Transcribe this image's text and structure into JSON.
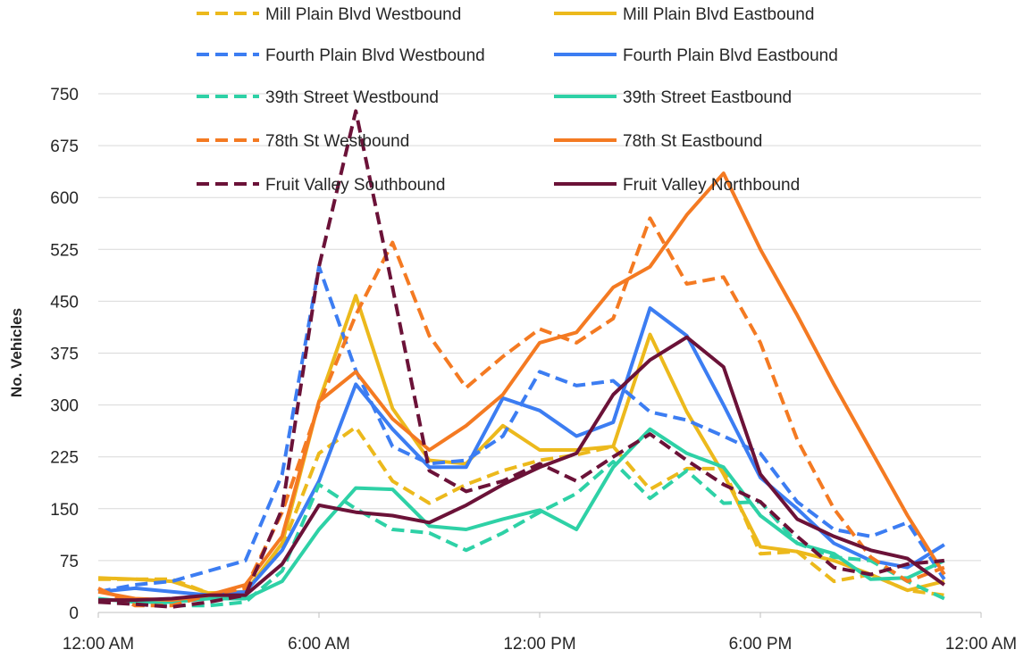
{
  "chart_data": {
    "type": "line",
    "title": "",
    "xlabel": "",
    "ylabel": "No. Vehicles",
    "ylim": [
      0,
      750
    ],
    "yticks": [
      0,
      75,
      150,
      225,
      300,
      375,
      450,
      525,
      600,
      675,
      750
    ],
    "xlim": [
      0,
      24
    ],
    "xticks": [
      {
        "value": 0,
        "label": "12:00 AM"
      },
      {
        "value": 6,
        "label": "6:00 AM"
      },
      {
        "value": 12,
        "label": "12:00 PM"
      },
      {
        "value": 18,
        "label": "6:00 PM"
      },
      {
        "value": 24,
        "label": "12:00 AM"
      }
    ],
    "grid": true,
    "legend_position": "top-right",
    "x": [
      0,
      1,
      2,
      3,
      4,
      5,
      6,
      7,
      8,
      9,
      10,
      11,
      12,
      13,
      14,
      15,
      16,
      17,
      18,
      19,
      20,
      21,
      22,
      23
    ],
    "series": [
      {
        "name": "Mill Plain Blvd Westbound",
        "color": "#ECB91C",
        "dash": true,
        "values": [
          48,
          48,
          48,
          28,
          30,
          95,
          230,
          268,
          190,
          158,
          185,
          205,
          220,
          228,
          240,
          178,
          208,
          208,
          85,
          88,
          45,
          55,
          32,
          25
        ]
      },
      {
        "name": "Mill Plain Blvd Eastbound",
        "color": "#ECB91C",
        "dash": false,
        "values": [
          50,
          48,
          45,
          28,
          30,
          100,
          305,
          458,
          295,
          220,
          215,
          270,
          235,
          235,
          240,
          402,
          290,
          200,
          95,
          88,
          75,
          55,
          32,
          45
        ]
      },
      {
        "name": "Fourth Plain Blvd Westbound",
        "color": "#3C7DF2",
        "dash": true,
        "values": [
          30,
          40,
          45,
          60,
          75,
          200,
          500,
          350,
          240,
          215,
          220,
          255,
          348,
          328,
          335,
          290,
          278,
          255,
          230,
          160,
          120,
          110,
          130,
          48
        ]
      },
      {
        "name": "Fourth Plain Blvd Eastbound",
        "color": "#3C7DF2",
        "dash": false,
        "values": [
          30,
          35,
          30,
          25,
          30,
          90,
          190,
          330,
          265,
          210,
          210,
          310,
          292,
          255,
          275,
          440,
          400,
          300,
          195,
          150,
          100,
          75,
          65,
          98
        ]
      },
      {
        "name": "39th Street Westbound",
        "color": "#2ED1A6",
        "dash": true,
        "values": [
          18,
          12,
          10,
          10,
          15,
          60,
          185,
          150,
          120,
          115,
          90,
          115,
          145,
          172,
          218,
          165,
          205,
          158,
          160,
          100,
          80,
          75,
          45,
          20
        ]
      },
      {
        "name": "39th Street Eastbound",
        "color": "#2ED1A6",
        "dash": false,
        "values": [
          20,
          15,
          15,
          20,
          20,
          45,
          120,
          180,
          178,
          125,
          120,
          135,
          148,
          120,
          210,
          265,
          230,
          210,
          140,
          100,
          85,
          48,
          50,
          75
        ]
      },
      {
        "name": "78th St Westbound",
        "color": "#F47A22",
        "dash": true,
        "values": [
          35,
          10,
          10,
          25,
          35,
          145,
          300,
          430,
          535,
          400,
          325,
          370,
          410,
          390,
          425,
          570,
          475,
          485,
          390,
          250,
          150,
          80,
          45,
          65
        ]
      },
      {
        "name": "78th St Eastbound",
        "color": "#F47A22",
        "dash": false,
        "values": [
          30,
          20,
          18,
          25,
          40,
          110,
          305,
          348,
          280,
          235,
          270,
          315,
          390,
          405,
          470,
          500,
          575,
          635,
          525,
          430,
          330,
          235,
          140,
          55
        ]
      },
      {
        "name": "Fruit Valley Southbound",
        "color": "#6B1238",
        "dash": true,
        "values": [
          15,
          12,
          8,
          15,
          25,
          150,
          500,
          725,
          470,
          205,
          175,
          190,
          215,
          190,
          225,
          258,
          220,
          185,
          160,
          110,
          65,
          55,
          70,
          75
        ]
      },
      {
        "name": "Fruit Valley Northbound",
        "color": "#6B1238",
        "dash": false,
        "values": [
          18,
          18,
          20,
          25,
          25,
          70,
          155,
          145,
          140,
          130,
          155,
          185,
          210,
          230,
          315,
          365,
          398,
          355,
          200,
          135,
          110,
          90,
          78,
          40
        ]
      }
    ]
  }
}
